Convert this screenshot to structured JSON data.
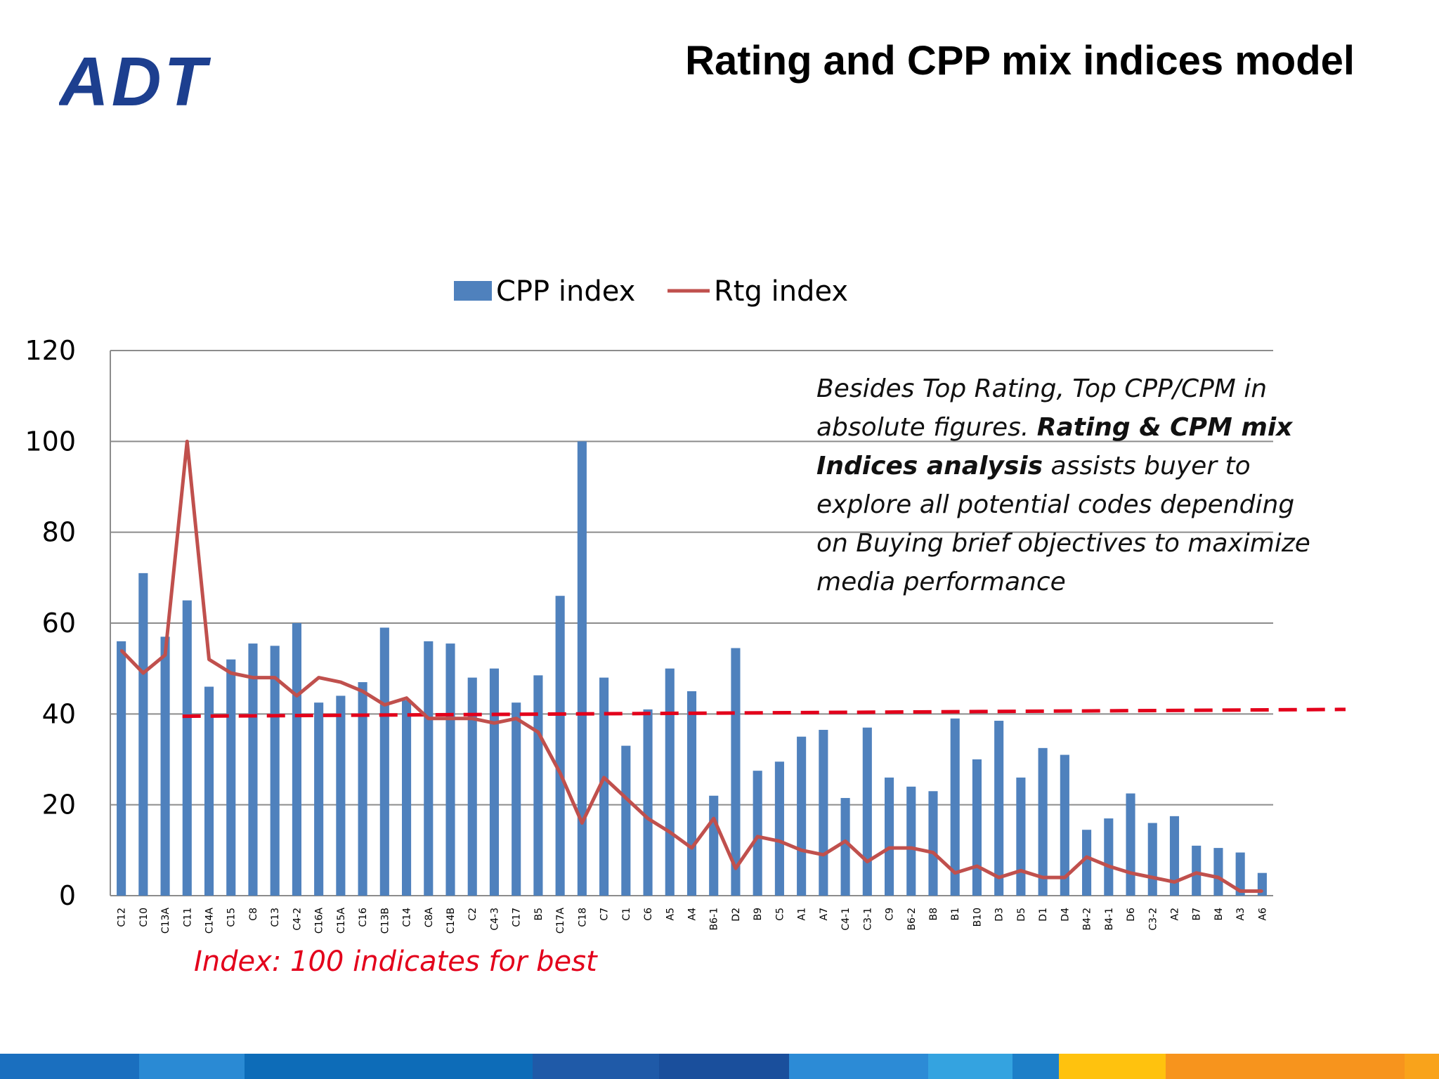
{
  "logo": {
    "text": "ADT",
    "color": "#1d3f8f"
  },
  "title": "Rating and CPP mix indices model",
  "annotation": {
    "part1": "Besides Top Rating, Top CPP/CPM in absolute figures. ",
    "bold": "Rating & CPM mix Indices analysis",
    "part2": " assists buyer to explore all potential codes depending on Buying brief objectives to maximize media performance"
  },
  "index_note": "Index: 100 indicates for best",
  "chart_data": {
    "type": "bar",
    "ylim": [
      0,
      120
    ],
    "yticks": [
      0,
      20,
      40,
      60,
      80,
      100,
      120
    ],
    "grid": true,
    "legend_placement": "top",
    "categories": [
      "C12",
      "C10",
      "C13A",
      "C11",
      "C14A",
      "C15",
      "C8",
      "C13",
      "C4-2",
      "C16A",
      "C15A",
      "C16",
      "C13B",
      "C14",
      "C8A",
      "C14B",
      "C2",
      "C4-3",
      "C17",
      "B5",
      "C17A",
      "C18",
      "C7",
      "C1",
      "C6",
      "A5",
      "A4",
      "B6-1",
      "D2",
      "B9",
      "C5",
      "A1",
      "A7",
      "C4-1",
      "C3-1",
      "C9",
      "B6-2",
      "B8",
      "B1",
      "B10",
      "D3",
      "D5",
      "D1",
      "D4",
      "B4-2",
      "B4-1",
      "D6",
      "C3-2",
      "A2",
      "B7",
      "B4",
      "A3",
      "A6"
    ],
    "series": [
      {
        "name": "CPP index",
        "type": "bar",
        "color": "#4f81bd",
        "values": [
          56,
          71,
          57,
          65,
          46,
          52,
          55.5,
          55,
          60,
          42.5,
          44,
          47,
          59,
          43,
          56,
          55.5,
          48,
          50,
          42.5,
          48.5,
          66,
          100,
          48,
          33,
          41,
          50,
          45,
          22,
          54.5,
          27.5,
          29.5,
          35,
          36.5,
          21.5,
          37,
          26,
          24,
          23,
          39,
          30,
          38.5,
          26,
          32.5,
          31,
          14.5,
          17,
          22.5,
          16,
          17.5,
          11,
          10.5,
          9.5,
          5
        ]
      },
      {
        "name": "Rtg index",
        "type": "line",
        "color": "#c0504d",
        "values": [
          54,
          49,
          53,
          100,
          52,
          49,
          48,
          48,
          44,
          48,
          47,
          45,
          42,
          43.5,
          39,
          39,
          39,
          38,
          39,
          36,
          27,
          16,
          26,
          21.5,
          17,
          14,
          10.5,
          17,
          6,
          13,
          12,
          10,
          9,
          12,
          7.5,
          10.5,
          10.5,
          9.5,
          5,
          6.5,
          4,
          5.5,
          4,
          4,
          8.5,
          6.5,
          5,
          4,
          3,
          5,
          4,
          1,
          1
        ]
      }
    ],
    "reference_line": {
      "color": "#e3001b",
      "start_y": 39.5,
      "end_y": 41
    }
  },
  "footer_colors": [
    "#1a6fbf",
    "#2a8ad4",
    "#0d6cb8",
    "#1f5aa8",
    "#1a4f9c",
    "#2c8bd6",
    "#34a3e0",
    "#1d7fc8",
    "#ffc20e",
    "#f7941d",
    "#f9a31b"
  ]
}
